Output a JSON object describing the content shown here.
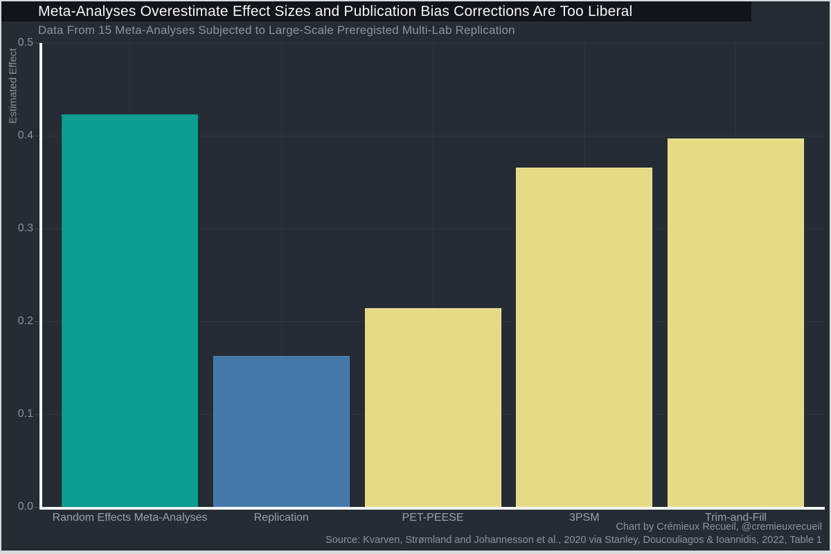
{
  "header": {
    "title": "Meta-Analyses Overestimate Effect Sizes and Publication Bias Corrections Are Too Liberal",
    "subtitle": "Data From 15 Meta-Analyses Subjected to Large-Scale Preregisted Multi-Lab Replication"
  },
  "footer": {
    "credit": "Chart by Crémieux Recueil, @cremieuxrecueil",
    "source": "Source: Kvarven, Strømland and Johannesson et al., 2020 via Stanley, Doucouliagos & Ioannidis, 2022, Table 1"
  },
  "colors": {
    "background": "#262C34",
    "title_band": "#10151B",
    "axis_line": "#F2F3F4",
    "grid": "rgba(255,255,255,0.045)",
    "muted_text": "#8C939B",
    "frame_border": "#D8DADE"
  },
  "chart_data": {
    "type": "bar",
    "title": "Meta-Analyses Overestimate Effect Sizes and Publication Bias Corrections Are Too Liberal",
    "subtitle": "Data From 15 Meta-Analyses Subjected to Large-Scale Preregisted Multi-Lab Replication",
    "categories": [
      "Random Effects Meta-Analyses",
      "Replication",
      "PET-PEESE",
      "3PSM",
      "Trim-and-Fill"
    ],
    "values": [
      0.423,
      0.163,
      0.214,
      0.366,
      0.397
    ],
    "bar_colors": [
      "#0A9F92",
      "#4478A8",
      "#E7DA85",
      "#E7DA85",
      "#E7DA85"
    ],
    "bar_edge_colors": [
      "#0C8A80",
      "#5486B3",
      "#EFE5A0",
      "#EFE5A0",
      "#EFE5A0"
    ],
    "xlabel": "",
    "ylabel": "Estimated Effect",
    "ylim": [
      0,
      0.5
    ],
    "yticks": [
      "0.0",
      "0.1",
      "0.2",
      "0.3",
      "0.4",
      "0.5"
    ],
    "grid": "on",
    "legend": "none"
  }
}
